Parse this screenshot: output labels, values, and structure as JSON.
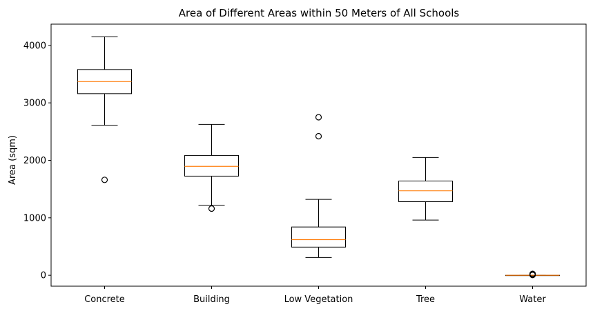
{
  "chart_data": {
    "type": "box",
    "title": "Area of Different Areas within 50 Meters of All Schools",
    "xlabel": "",
    "ylabel": "Area (sqm)",
    "ylim": [
      -190,
      4370
    ],
    "yticks": [
      0,
      1000,
      2000,
      3000,
      4000
    ],
    "grid": false,
    "categories": [
      "Concrete",
      "Building",
      "Low Vegetation",
      "Tree",
      "Water"
    ],
    "boxes": [
      {
        "category": "Concrete",
        "whisker_low": 2610,
        "q1": 3160,
        "median": 3370,
        "q3": 3580,
        "whisker_high": 4150,
        "outliers": [
          1660
        ]
      },
      {
        "category": "Building",
        "whisker_low": 1220,
        "q1": 1725,
        "median": 1895,
        "q3": 2085,
        "whisker_high": 2625,
        "outliers": [
          1160
        ]
      },
      {
        "category": "Low Vegetation",
        "whisker_low": 310,
        "q1": 490,
        "median": 620,
        "q3": 840,
        "whisker_high": 1320,
        "outliers": [
          2420,
          2750
        ]
      },
      {
        "category": "Tree",
        "whisker_low": 960,
        "q1": 1280,
        "median": 1470,
        "q3": 1640,
        "whisker_high": 2050,
        "outliers": []
      },
      {
        "category": "Water",
        "whisker_low": 0,
        "q1": 0,
        "median": 0,
        "q3": 0,
        "whisker_high": 0,
        "outliers": [
          5,
          10,
          15,
          20,
          25
        ]
      }
    ],
    "colors": {
      "box": "#000000",
      "median": "#ff7f0e",
      "background": "#ffffff"
    }
  }
}
